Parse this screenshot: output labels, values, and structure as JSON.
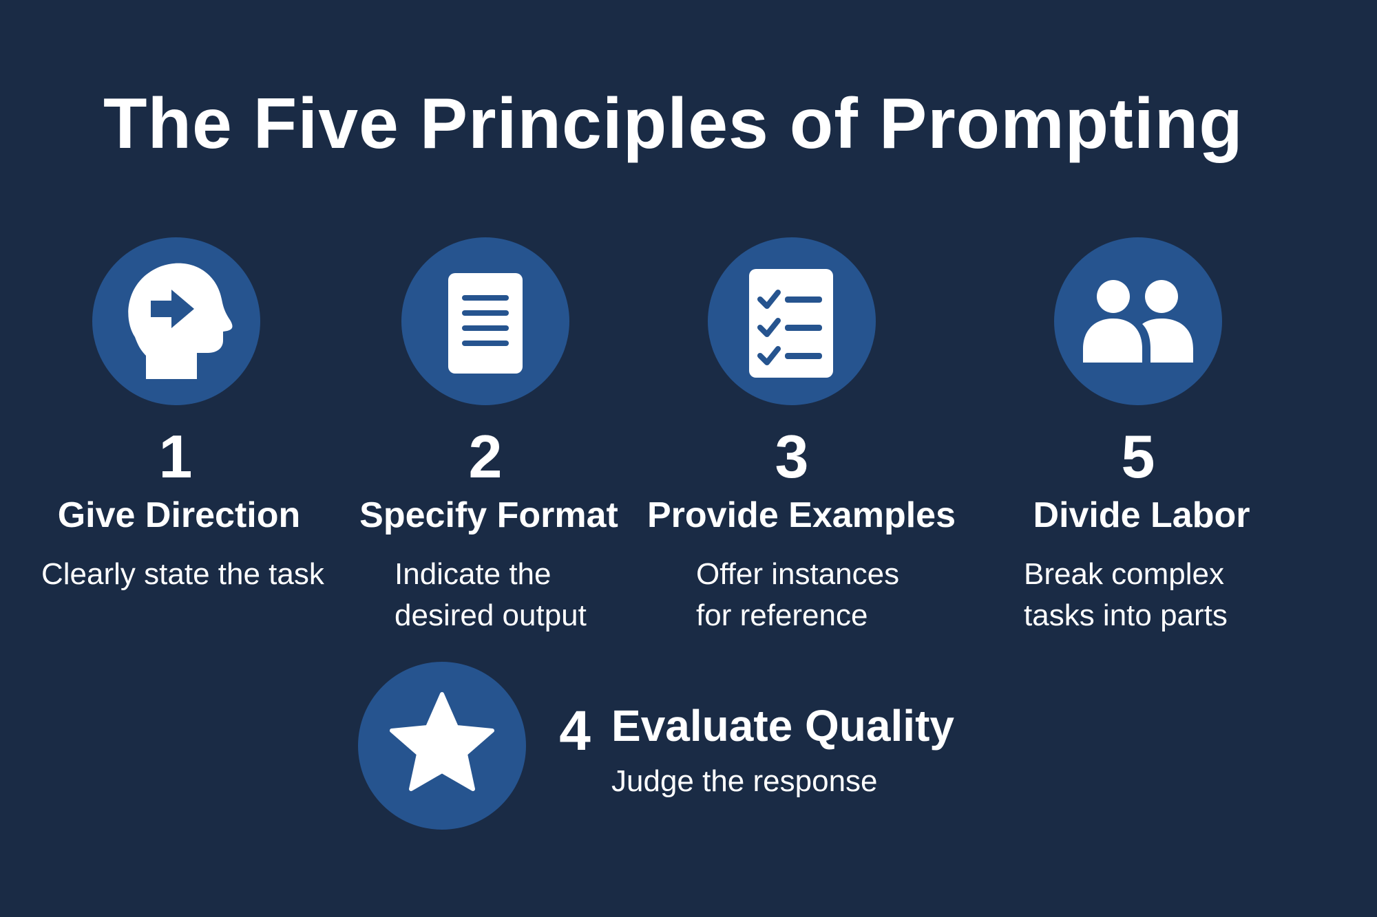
{
  "title": "The Five Principles of Prompting",
  "colors": {
    "background": "#1a2b45",
    "circle": "#26548f",
    "foreground": "#ffffff"
  },
  "principles": [
    {
      "number": "1",
      "heading": "Give Direction",
      "description": "Clearly state the task",
      "icon": "head-arrow-icon"
    },
    {
      "number": "2",
      "heading": "Specify Format",
      "description": "Indicate the\ndesired output",
      "icon": "document-icon"
    },
    {
      "number": "3",
      "heading": "Provide Examples",
      "description": "Offer instances\nfor reference",
      "icon": "checklist-icon"
    },
    {
      "number": "5",
      "heading": "Divide Labor",
      "description": "Break complex\ntasks into parts",
      "icon": "people-icon"
    },
    {
      "number": "4",
      "heading": "Evaluate Quality",
      "description": "Judge the response",
      "icon": "star-icon"
    }
  ]
}
